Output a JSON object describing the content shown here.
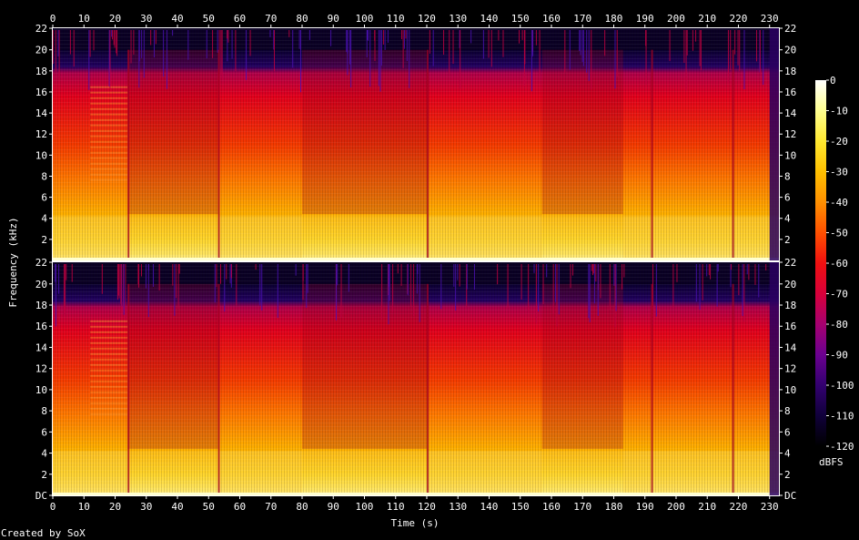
{
  "chart_data": {
    "type": "heatmap",
    "title": "",
    "xlabel": "Time (s)",
    "ylabel": "Frequency (kHz)",
    "x_ticks": [
      "0",
      "10",
      "20",
      "30",
      "40",
      "50",
      "60",
      "70",
      "80",
      "90",
      "100",
      "110",
      "120",
      "130",
      "140",
      "150",
      "160",
      "170",
      "180",
      "190",
      "200",
      "210",
      "220",
      "230"
    ],
    "xlim": [
      0,
      233
    ],
    "channels": [
      {
        "name": "",
        "y_ticks": [
          "22",
          "20",
          "18",
          "16",
          "14",
          "12",
          "10",
          "8",
          "6",
          "4",
          "2"
        ]
      },
      {
        "name": "",
        "y_ticks": [
          "22",
          "20",
          "18",
          "16",
          "14",
          "12",
          "10",
          "8",
          "6",
          "4",
          "2",
          "DC"
        ]
      }
    ],
    "ylim_khz": [
      0,
      22.05
    ],
    "lowpass_cutoff_khz": 20,
    "energy_profile": [
      {
        "from": 0,
        "to": 12,
        "level": "high"
      },
      {
        "from": 12,
        "to": 24,
        "level": "high",
        "tonal_bands": true
      },
      {
        "from": 24,
        "to": 53,
        "level": "medium"
      },
      {
        "from": 53,
        "to": 80,
        "level": "high"
      },
      {
        "from": 80,
        "to": 120,
        "level": "medium"
      },
      {
        "from": 120,
        "to": 157,
        "level": "high"
      },
      {
        "from": 157,
        "to": 183,
        "level": "medium"
      },
      {
        "from": 183,
        "to": 193,
        "level": "high"
      },
      {
        "from": 193,
        "to": 233,
        "level": "high"
      }
    ],
    "colorbar": {
      "unit": "dBFS",
      "ticks": [
        "0",
        "-10",
        "-20",
        "-30",
        "-40",
        "-50",
        "-60",
        "-70",
        "-80",
        "-90",
        "-100",
        "-110",
        "-120"
      ],
      "range": [
        -120,
        0
      ],
      "colors": [
        "#000000",
        "#10003a",
        "#330070",
        "#6b0090",
        "#a60070",
        "#d8003a",
        "#f01010",
        "#ff5000",
        "#ff9000",
        "#ffc000",
        "#ffe830",
        "#ffff90",
        "#ffffff"
      ]
    },
    "footer": "Created by SoX"
  }
}
